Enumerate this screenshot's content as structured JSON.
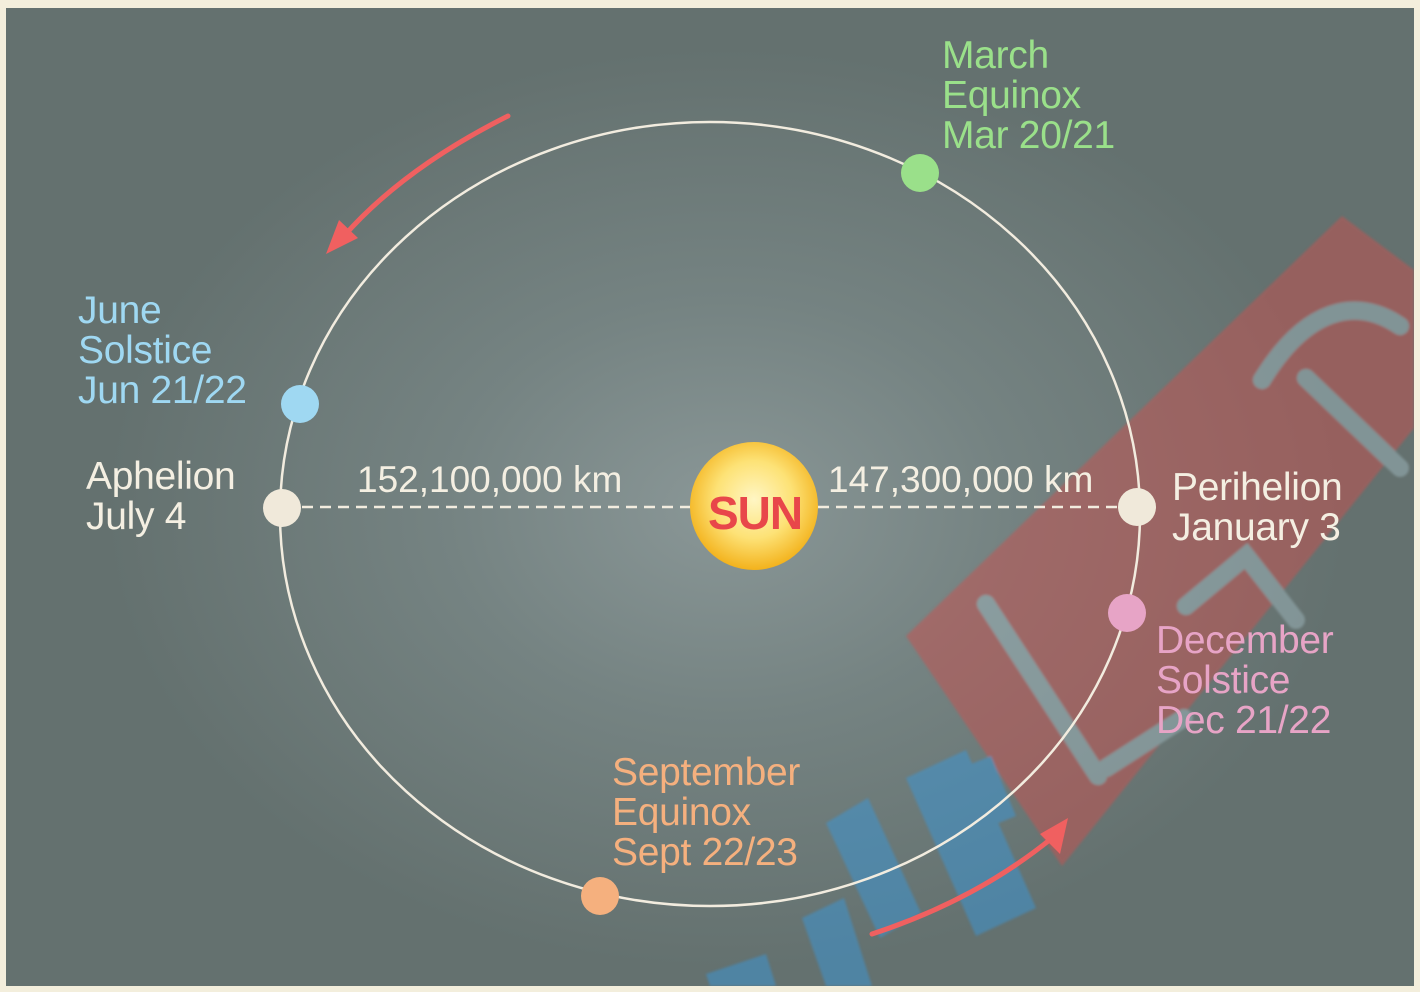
{
  "colors": {
    "background": "#6f7c7b",
    "orbit": "#f2ecdf",
    "march": "#9ae08a",
    "june": "#9fd8f2",
    "september": "#f5b07e",
    "december": "#e7a4c6",
    "apsis": "#f0e9da",
    "sun_core": "#fff3b0",
    "sun_edge": "#f6b81d",
    "sun_text": "#e8474a",
    "arrow": "#f06060",
    "watermark_red": "#c9514f",
    "watermark_blue": "#3a97d8"
  },
  "sun": {
    "label": "SUN"
  },
  "distances": {
    "aphelion": "152,100,000 km",
    "perihelion": "147,300,000 km"
  },
  "points": {
    "march": {
      "name": "March",
      "event": "Equinox",
      "date": "Mar 20/21"
    },
    "june": {
      "name": "June",
      "event": "Solstice",
      "date": "Jun 21/22"
    },
    "aphelion": {
      "name": "Aphelion",
      "date": "July 4"
    },
    "perihelion": {
      "name": "Perihelion",
      "date": "January 3"
    },
    "december": {
      "name": "December",
      "event": "Solstice",
      "date": "Dec 21/22"
    },
    "september": {
      "name": "September",
      "event": "Equinox",
      "date": "Sept 22/23"
    }
  },
  "icons": {
    "orbit_direction": "arrow-icon",
    "watermark": "watermark-logo-icon"
  }
}
